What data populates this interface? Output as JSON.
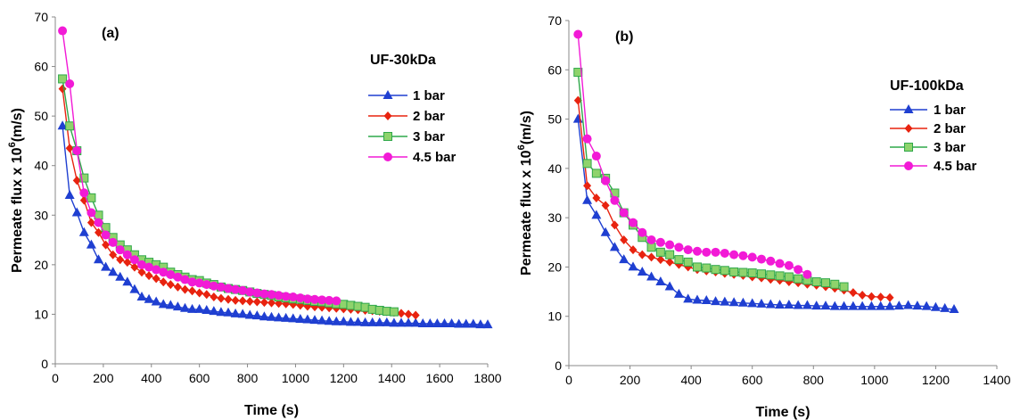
{
  "chart_data": [
    {
      "type": "line",
      "panel_label": "(a)",
      "legend_title": "UF-30kDa",
      "xlabel": "Time (s)",
      "ylabel_main": "Permeate flux x 10",
      "ylabel_sup": "6",
      "ylabel_unit": "(m/s)",
      "xlim": [
        0,
        1800
      ],
      "ylim": [
        0,
        70
      ],
      "xticks": [
        0,
        200,
        400,
        600,
        800,
        1000,
        1200,
        1400,
        1600,
        1800
      ],
      "yticks": [
        0,
        10,
        20,
        30,
        40,
        50,
        60,
        70
      ],
      "xtick_labels": [
        "0",
        "200",
        "400",
        "600",
        "800",
        "1000",
        "1200",
        "1400",
        "1600",
        "1800"
      ],
      "ytick_labels": [
        "0",
        "10",
        "20",
        "30",
        "40",
        "50",
        "60",
        "70"
      ],
      "legend_position": "top-right",
      "series": [
        {
          "name": "1 bar",
          "color": "#1f3fd1",
          "marker": "triangle",
          "x": [
            30,
            60,
            90,
            120,
            150,
            180,
            210,
            240,
            270,
            300,
            330,
            360,
            390,
            420,
            450,
            480,
            510,
            540,
            570,
            600,
            630,
            660,
            690,
            720,
            750,
            780,
            810,
            840,
            870,
            900,
            930,
            960,
            990,
            1020,
            1050,
            1080,
            1110,
            1140,
            1170,
            1200,
            1230,
            1260,
            1290,
            1320,
            1350,
            1380,
            1410,
            1440,
            1470,
            1500,
            1530,
            1560,
            1590,
            1620,
            1650,
            1680,
            1710,
            1740,
            1770,
            1800
          ],
          "y": [
            48,
            34,
            30.5,
            26.5,
            24,
            21,
            19.5,
            18.5,
            17.5,
            16.5,
            15,
            13.5,
            13,
            12.5,
            12,
            11.8,
            11.5,
            11.2,
            11,
            11,
            10.8,
            10.6,
            10.4,
            10.3,
            10.1,
            10,
            9.8,
            9.7,
            9.5,
            9.4,
            9.3,
            9.2,
            9.1,
            9,
            8.9,
            8.8,
            8.7,
            8.6,
            8.5,
            8.5,
            8.4,
            8.4,
            8.3,
            8.3,
            8.3,
            8.3,
            8.2,
            8.2,
            8.2,
            8.2,
            8.1,
            8.1,
            8.1,
            8.1,
            8.1,
            8,
            8,
            8,
            7.9,
            7.9
          ]
        },
        {
          "name": "2 bar",
          "color": "#e8230f",
          "marker": "diamond",
          "x": [
            30,
            60,
            90,
            120,
            150,
            180,
            210,
            240,
            270,
            300,
            330,
            360,
            390,
            420,
            450,
            480,
            510,
            540,
            570,
            600,
            630,
            660,
            690,
            720,
            750,
            780,
            810,
            840,
            870,
            900,
            930,
            960,
            990,
            1020,
            1050,
            1080,
            1110,
            1140,
            1170,
            1200,
            1230,
            1260,
            1290,
            1320,
            1350,
            1380,
            1410,
            1440,
            1470,
            1500
          ],
          "y": [
            55.5,
            43.5,
            37,
            33,
            28.5,
            26.5,
            24,
            22,
            21,
            20.5,
            19.5,
            18.5,
            17.8,
            17.2,
            16.5,
            16,
            15.5,
            15,
            14.7,
            14.3,
            14,
            13.5,
            13.2,
            13,
            12.8,
            12.7,
            12.6,
            12.5,
            12.4,
            12.3,
            12.2,
            12.1,
            12,
            11.8,
            11.6,
            11.5,
            11.4,
            11.3,
            11.2,
            11.1,
            11,
            10.9,
            10.8,
            10.7,
            10.6,
            10.5,
            10.4,
            10.2,
            10,
            9.8
          ]
        },
        {
          "name": "3 bar",
          "color": "#2fa84a",
          "fill": "#8fd36c",
          "marker": "square",
          "x": [
            30,
            60,
            90,
            120,
            150,
            180,
            210,
            240,
            270,
            300,
            330,
            360,
            390,
            420,
            450,
            480,
            510,
            540,
            570,
            600,
            630,
            660,
            690,
            720,
            750,
            780,
            810,
            840,
            870,
            900,
            930,
            960,
            990,
            1020,
            1050,
            1080,
            1110,
            1140,
            1170,
            1200,
            1230,
            1260,
            1290,
            1320,
            1350,
            1380,
            1410
          ],
          "y": [
            57.5,
            48,
            43,
            37.5,
            33.5,
            30,
            27.5,
            25.5,
            24,
            23,
            22,
            21,
            20.5,
            20,
            19.5,
            18.5,
            18,
            17.5,
            17,
            16.8,
            16.3,
            16,
            15.5,
            15.2,
            15,
            14.8,
            14.5,
            14.2,
            14,
            13.8,
            13.5,
            13.3,
            13.1,
            13,
            12.8,
            12.6,
            12.5,
            12.3,
            12.1,
            12,
            11.8,
            11.6,
            11.4,
            11,
            10.8,
            10.6,
            10.5
          ]
        },
        {
          "name": "4.5 bar",
          "color": "#f21ad6",
          "marker": "circle",
          "x": [
            30,
            60,
            90,
            120,
            150,
            180,
            210,
            240,
            270,
            300,
            330,
            360,
            390,
            420,
            450,
            480,
            510,
            540,
            570,
            600,
            630,
            660,
            690,
            720,
            750,
            780,
            810,
            840,
            870,
            900,
            930,
            960,
            990,
            1020,
            1050,
            1080,
            1110,
            1140,
            1170
          ],
          "y": [
            67.2,
            56.5,
            43,
            34.5,
            30.5,
            28.5,
            26,
            24.5,
            23,
            22,
            21,
            20,
            19.5,
            19,
            18.5,
            18,
            17.5,
            17,
            16.5,
            16.3,
            16,
            15.7,
            15.5,
            15.2,
            15,
            14.8,
            14.5,
            14.3,
            14.1,
            14,
            13.8,
            13.6,
            13.5,
            13.3,
            13.1,
            13,
            12.9,
            12.8,
            12.7
          ]
        }
      ]
    },
    {
      "type": "line",
      "panel_label": "(b)",
      "legend_title": "UF-100kDa",
      "xlabel": "Time (s)",
      "ylabel_main": "Permeate flux x 10",
      "ylabel_sup": "6",
      "ylabel_unit": "(m/s)",
      "xlim": [
        0,
        1400
      ],
      "ylim": [
        0,
        70
      ],
      "xticks": [
        0,
        200,
        400,
        600,
        800,
        1000,
        1200,
        1400
      ],
      "yticks": [
        0,
        10,
        20,
        30,
        40,
        50,
        60,
        70
      ],
      "xtick_labels": [
        "0",
        "200",
        "400",
        "600",
        "800",
        "1000",
        "1200",
        "1400"
      ],
      "ytick_labels": [
        "0",
        "10",
        "20",
        "30",
        "40",
        "50",
        "60",
        "70"
      ],
      "legend_position": "top-right",
      "series": [
        {
          "name": "1 bar",
          "color": "#1f3fd1",
          "marker": "triangle",
          "x": [
            30,
            60,
            90,
            120,
            150,
            180,
            210,
            240,
            270,
            300,
            330,
            360,
            390,
            420,
            450,
            480,
            510,
            540,
            570,
            600,
            630,
            660,
            690,
            720,
            750,
            780,
            810,
            840,
            870,
            900,
            930,
            960,
            990,
            1020,
            1050,
            1080,
            1110,
            1140,
            1170,
            1200,
            1230,
            1260
          ],
          "y": [
            50,
            33.5,
            30.5,
            27,
            24,
            21.5,
            20,
            19,
            18,
            17,
            16,
            14.5,
            13.5,
            13.3,
            13.2,
            13,
            12.9,
            12.8,
            12.7,
            12.6,
            12.5,
            12.4,
            12.3,
            12.3,
            12.2,
            12.2,
            12.1,
            12.1,
            12,
            12,
            12,
            12,
            12,
            12,
            12,
            12.1,
            12.2,
            12.1,
            12,
            11.8,
            11.6,
            11.4
          ]
        },
        {
          "name": "2 bar",
          "color": "#e8230f",
          "marker": "diamond",
          "x": [
            30,
            60,
            90,
            120,
            150,
            180,
            210,
            240,
            270,
            300,
            330,
            360,
            390,
            420,
            450,
            480,
            510,
            540,
            570,
            600,
            630,
            660,
            690,
            720,
            750,
            780,
            810,
            840,
            870,
            900,
            930,
            960,
            990,
            1020,
            1050
          ],
          "y": [
            53.8,
            36.5,
            34,
            32.5,
            28.5,
            25.5,
            23.5,
            22.5,
            22,
            21.5,
            21,
            20.5,
            20,
            19.5,
            19.2,
            19,
            18.7,
            18.5,
            18.3,
            18,
            17.8,
            17.5,
            17.3,
            17,
            16.8,
            16.5,
            16.3,
            16,
            15.7,
            15.3,
            14.8,
            14.3,
            14,
            13.9,
            13.8
          ]
        },
        {
          "name": "3 bar",
          "color": "#2fa84a",
          "fill": "#8fd36c",
          "marker": "square",
          "x": [
            30,
            60,
            90,
            120,
            150,
            180,
            210,
            240,
            270,
            300,
            330,
            360,
            390,
            420,
            450,
            480,
            510,
            540,
            570,
            600,
            630,
            660,
            690,
            720,
            750,
            780,
            810,
            840,
            870,
            900
          ],
          "y": [
            59.5,
            41,
            39,
            38,
            35,
            31,
            28.5,
            26,
            24,
            23,
            22.5,
            21.5,
            21,
            20,
            19.8,
            19.5,
            19.3,
            19,
            18.9,
            18.8,
            18.6,
            18.4,
            18.2,
            18,
            17.6,
            17.3,
            17,
            16.8,
            16.5,
            16
          ]
        },
        {
          "name": "4.5 bar",
          "color": "#f21ad6",
          "marker": "circle",
          "x": [
            30,
            60,
            90,
            120,
            150,
            180,
            210,
            240,
            270,
            300,
            330,
            360,
            390,
            420,
            450,
            480,
            510,
            540,
            570,
            600,
            630,
            660,
            690,
            720,
            750,
            780
          ],
          "y": [
            67.2,
            46,
            42.5,
            37.5,
            33.5,
            31,
            29,
            27,
            25.5,
            25,
            24.5,
            24,
            23.5,
            23.2,
            23,
            23,
            22.8,
            22.5,
            22.3,
            22,
            21.6,
            21.2,
            20.7,
            20.3,
            19.5,
            18.5
          ]
        }
      ]
    }
  ]
}
